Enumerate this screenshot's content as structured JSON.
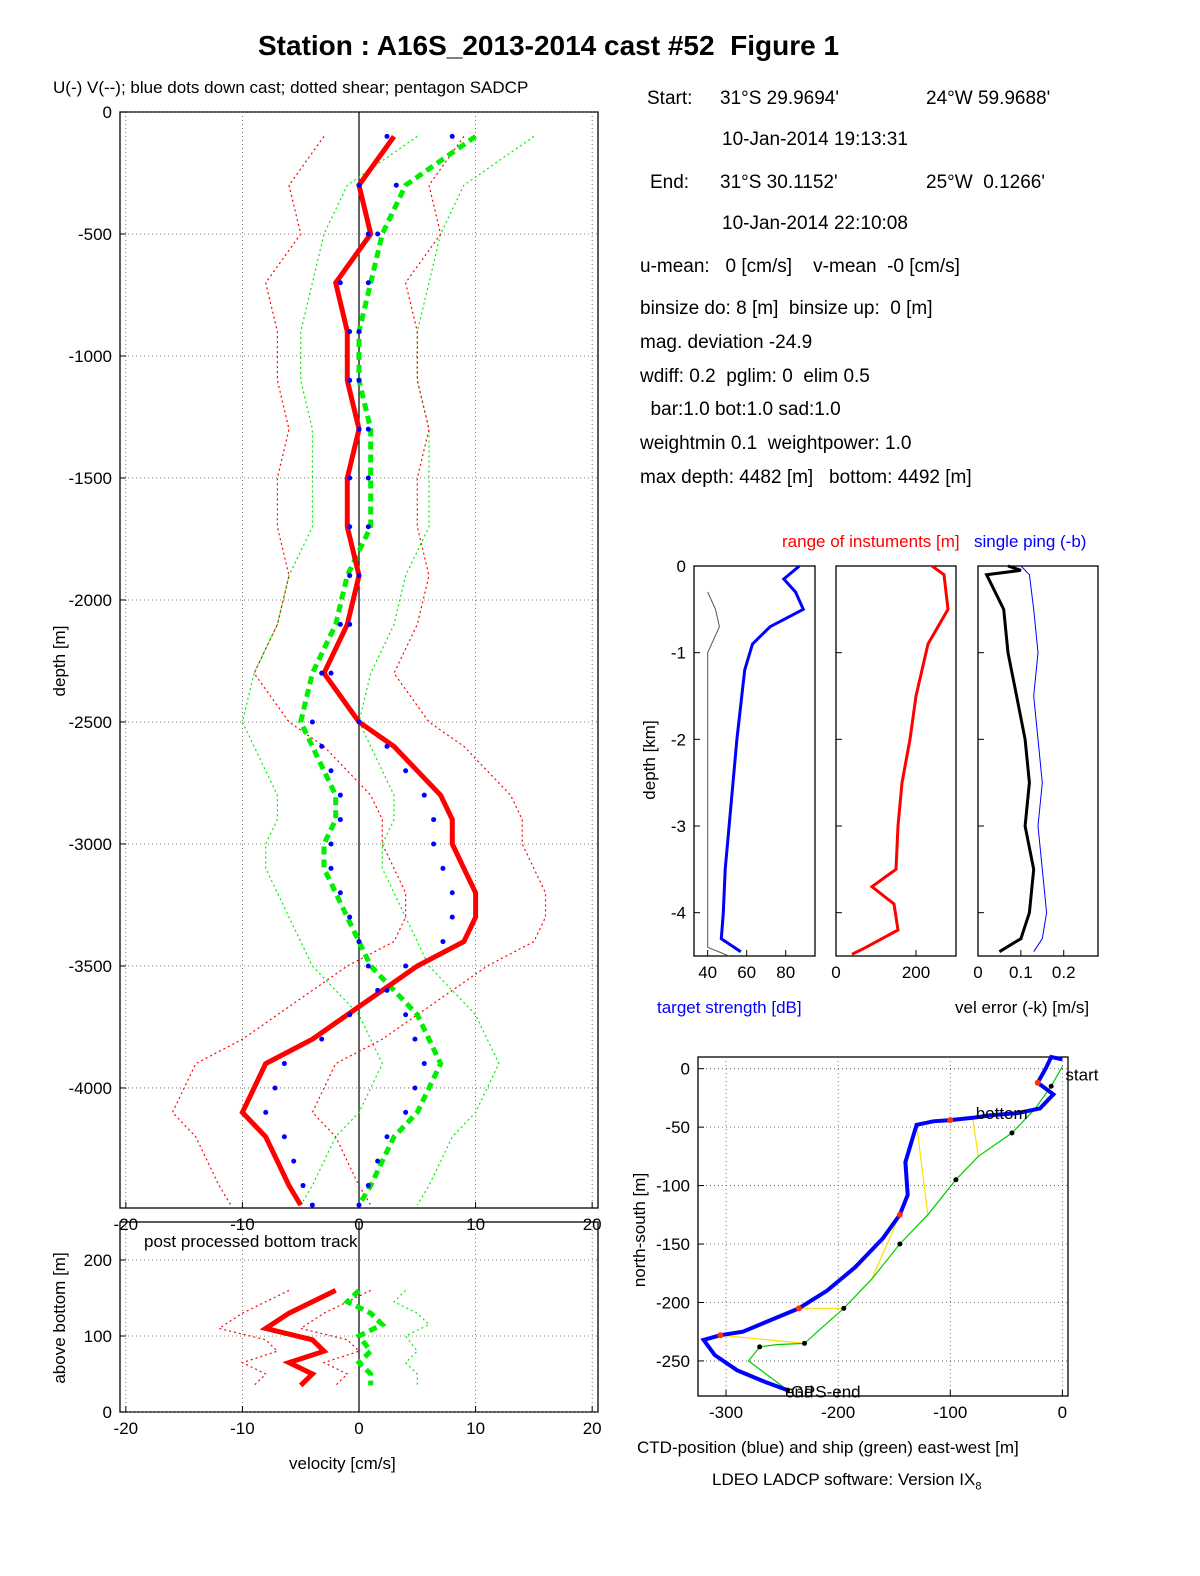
{
  "title": "Station : A16S_2013-2014 cast #52  Figure 1",
  "legend_note": "U(-) V(--); blue dots down cast; dotted shear; pentagon SADCP",
  "info": {
    "start_label": "Start:",
    "start_lat": "31°S 29.9694'",
    "start_lon": "24°W 59.9688'",
    "start_time": "10-Jan-2014 19:13:31",
    "end_label": "End:",
    "end_lat": "31°S 30.1152'",
    "end_lon": "25°W  0.1266'",
    "end_time": "10-Jan-2014 22:10:08",
    "means": "u-mean:   0 [cm/s]    v-mean  -0 [cm/s]",
    "binsize": "binsize do: 8 [m]  binsize up:  0 [m]",
    "magdev": "mag. deviation -24.9",
    "wdiff": "wdiff: 0.2  pglim: 0  elim 0.5",
    "bar": "  bar:1.0 bot:1.0 sad:1.0",
    "weight": "weightmin 0.1  weightpower: 1.0",
    "depth": "max depth: 4482 [m]   bottom: 4492 [m]"
  },
  "colors": {
    "u": "#ff0000",
    "v": "#00ee00",
    "downcast": "#0000ff",
    "ctd": "#0000ff",
    "ship": "#00cc00",
    "link": "#ffdd00"
  },
  "chart_data": [
    {
      "type": "line",
      "name": "velocity-profile",
      "xlabel": "velocity [cm/s]",
      "ylabel": "depth [m]",
      "xlim": [
        -20.5,
        20.5
      ],
      "ylim": [
        -4492,
        0
      ],
      "xticks": [
        "-20",
        "-10",
        "0",
        "10",
        "20"
      ],
      "yticks": [
        "0",
        "-500",
        "-1000",
        "-1500",
        "-2000",
        "-2500",
        "-3000",
        "-3500",
        "-4000"
      ],
      "grid": true,
      "series": [
        {
          "name": "U(-)",
          "color": "#ff0000",
          "depth": [
            -100,
            -300,
            -500,
            -700,
            -900,
            -1100,
            -1300,
            -1500,
            -1700,
            -1900,
            -2100,
            -2300,
            -2500,
            -2600,
            -2700,
            -2800,
            -2900,
            -3000,
            -3100,
            -3200,
            -3300,
            -3400,
            -3500,
            -3600,
            -3700,
            -3800,
            -3900,
            -4000,
            -4100,
            -4200,
            -4300,
            -4400,
            -4480
          ],
          "values": [
            3,
            0,
            1,
            -2,
            -1,
            -1,
            0,
            -1,
            -1,
            0,
            -1,
            -3,
            0,
            3,
            5,
            7,
            8,
            8,
            9,
            10,
            10,
            9,
            5,
            2,
            -1,
            -4,
            -8,
            -9,
            -10,
            -8,
            -7,
            -6,
            -5
          ]
        },
        {
          "name": "V(--)",
          "color": "#00ee00",
          "depth": [
            -100,
            -300,
            -500,
            -700,
            -900,
            -1100,
            -1300,
            -1500,
            -1700,
            -1900,
            -2100,
            -2300,
            -2500,
            -2600,
            -2700,
            -2800,
            -2900,
            -3000,
            -3100,
            -3200,
            -3300,
            -3400,
            -3500,
            -3600,
            -3700,
            -3800,
            -3900,
            -4000,
            -4100,
            -4200,
            -4300,
            -4400,
            -4480
          ],
          "values": [
            10,
            4,
            2,
            1,
            0,
            0,
            1,
            1,
            1,
            -1,
            -2,
            -4,
            -5,
            -4,
            -3,
            -2,
            -2,
            -3,
            -3,
            -2,
            -1,
            0,
            1,
            3,
            5,
            6,
            7,
            6,
            5,
            3,
            2,
            1,
            0
          ]
        }
      ]
    },
    {
      "type": "line",
      "name": "bottom-track",
      "annotation": "post processed bottom track",
      "xlabel": "velocity [cm/s]",
      "ylabel": "above bottom [m]",
      "xlim": [
        -20.5,
        20.5
      ],
      "ylim": [
        0,
        250
      ],
      "xticks": [
        "-20",
        "-10",
        "0",
        "10",
        "20"
      ],
      "yticks": [
        "0",
        "100",
        "200"
      ],
      "grid": true,
      "series": [
        {
          "name": "U",
          "color": "#ff0000",
          "height": [
            160,
            145,
            130,
            110,
            95,
            80,
            65,
            50,
            35
          ],
          "values": [
            -2,
            -4,
            -6,
            -8,
            -4,
            -3,
            -6,
            -4,
            -5
          ]
        },
        {
          "name": "V",
          "color": "#00ee00",
          "height": [
            160,
            145,
            130,
            115,
            100,
            80,
            65,
            50,
            35
          ],
          "values": [
            0,
            -1,
            1,
            2,
            0,
            1,
            0,
            1,
            1
          ]
        }
      ]
    },
    {
      "type": "line",
      "name": "target-strength",
      "xlabel": "target strength [dB]",
      "ylabel": "depth [km]",
      "xlim": [
        33,
        95
      ],
      "ylim": [
        -4.5,
        0
      ],
      "xticks": [
        "40",
        "60",
        "80"
      ],
      "yticks": [
        "0",
        "-1",
        "-2",
        "-3",
        "-4"
      ],
      "grid": false,
      "series": [
        {
          "name": "target strength",
          "color": "#0000ff",
          "depth": [
            0,
            0.15,
            0.3,
            0.5,
            0.7,
            0.9,
            1.2,
            1.6,
            2.0,
            2.5,
            3.0,
            3.5,
            4.0,
            4.3,
            4.45
          ],
          "values": [
            87,
            79,
            85,
            89,
            72,
            63,
            59,
            57,
            55,
            53,
            51,
            49,
            48,
            47,
            57
          ]
        },
        {
          "name": "",
          "color": "#555555",
          "depth": [
            0.3,
            0.5,
            0.7,
            1.0,
            2.0,
            3.0,
            4.0,
            4.4,
            4.5
          ],
          "values": [
            40,
            44,
            46,
            40,
            40,
            40,
            40,
            40,
            51
          ]
        }
      ]
    },
    {
      "type": "line",
      "name": "instrument-range",
      "title": "range of instuments [m]",
      "xlim": [
        0,
        300
      ],
      "ylim": [
        -4.5,
        0
      ],
      "xticks": [
        "0",
        "200"
      ],
      "grid": false,
      "series": [
        {
          "name": "range",
          "color": "#ff0000",
          "depth": [
            0,
            0.1,
            0.5,
            0.9,
            1.5,
            2.0,
            2.5,
            3.0,
            3.5,
            3.7,
            3.9,
            4.2,
            4.4,
            4.48
          ],
          "values": [
            240,
            270,
            280,
            230,
            200,
            185,
            165,
            155,
            150,
            90,
            145,
            155,
            75,
            40
          ]
        }
      ]
    },
    {
      "type": "line",
      "name": "velocity-error",
      "title": "single ping (-b)",
      "xlabel": "vel error (-k) [m/s]",
      "xlim": [
        0,
        0.28
      ],
      "ylim": [
        -4.5,
        0
      ],
      "xticks": [
        "0",
        "0.1",
        "0.2"
      ],
      "grid": false,
      "series": [
        {
          "name": "vel error",
          "color": "#000000",
          "depth": [
            0,
            0.05,
            0.1,
            0.5,
            1.0,
            1.5,
            2.0,
            2.5,
            3.0,
            3.5,
            4.0,
            4.3,
            4.45
          ],
          "values": [
            0.07,
            0.1,
            0.02,
            0.06,
            0.07,
            0.09,
            0.11,
            0.12,
            0.11,
            0.13,
            0.12,
            0.1,
            0.05
          ]
        },
        {
          "name": "single ping",
          "color": "#0000ff",
          "depth": [
            0,
            0.1,
            0.5,
            1.0,
            1.5,
            2.0,
            2.5,
            3.0,
            3.5,
            4.0,
            4.3,
            4.45
          ],
          "values": [
            0.1,
            0.12,
            0.13,
            0.14,
            0.13,
            0.14,
            0.15,
            0.14,
            0.15,
            0.16,
            0.15,
            0.13
          ]
        }
      ]
    },
    {
      "type": "line",
      "name": "position",
      "xlabel": "CTD-position (blue) and ship (green) east-west [m]",
      "ylabel": "north-south [m]",
      "xlim": [
        -325,
        5
      ],
      "ylim": [
        -280,
        10
      ],
      "xticks": [
        "-300",
        "-200",
        "-100",
        "0"
      ],
      "yticks": [
        "0",
        "-50",
        "-100",
        "-150",
        "-200",
        "-250"
      ],
      "grid": true,
      "labels": [
        "start",
        "bottom",
        "end",
        "GPS-end"
      ],
      "series": [
        {
          "name": "CTD",
          "color": "#0000ff",
          "x": [
            0,
            -10,
            -15,
            -22,
            -8,
            -20,
            -40,
            -65,
            -80,
            -100,
            -115,
            -130,
            -140,
            -138,
            -145,
            -160,
            -185,
            -210,
            -235,
            -260,
            -285,
            -305,
            -320,
            -310,
            -290,
            -265,
            -245
          ],
          "y": [
            8,
            10,
            0,
            -12,
            -22,
            -34,
            -38,
            -40,
            -42,
            -44,
            -45,
            -48,
            -80,
            -108,
            -125,
            -145,
            -170,
            -190,
            -205,
            -215,
            -225,
            -228,
            -232,
            -245,
            -258,
            -268,
            -275
          ]
        },
        {
          "name": "ship",
          "color": "#00cc00",
          "x": [
            0,
            -10,
            -25,
            -45,
            -75,
            -95,
            -120,
            -145,
            -170,
            -195,
            -215,
            -230,
            -255,
            -270,
            -280,
            -245
          ],
          "y": [
            2,
            -15,
            -35,
            -55,
            -75,
            -95,
            -125,
            -150,
            -180,
            -205,
            -222,
            -235,
            -236,
            -238,
            -250,
            -275
          ]
        }
      ]
    }
  ],
  "footer": {
    "software": "LDEO LADCP software: Version IX",
    "subscript": "8"
  }
}
